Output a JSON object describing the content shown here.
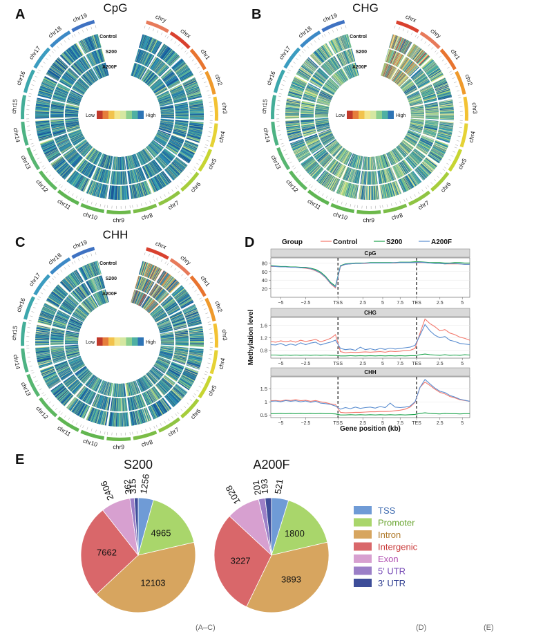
{
  "panel_letters": [
    "A",
    "B",
    "C",
    "D",
    "E"
  ],
  "colors": {
    "circos_palette": [
      "#1a5a9b",
      "#2f8fb4",
      "#43a9a6",
      "#6cbf8f",
      "#a3d07d",
      "#d4e48a",
      "#eaeab0",
      "#e6c56a",
      "#e49a4a",
      "#cf4a3c"
    ],
    "heat_scale": [
      "#c0392b",
      "#e67e3c",
      "#f2c24c",
      "#f3e58c",
      "#d5e7a1",
      "#8ccf8e",
      "#4fb0a3",
      "#2e74b5"
    ],
    "control": "#f3786c",
    "s200": "#1ba24b",
    "a200f": "#5b8ed0",
    "facet_strip": "#d9d9d9"
  },
  "circos": [
    {
      "title": "CpG",
      "tracks": [
        "Control",
        "S200",
        "A200F"
      ],
      "legend_low": "Low",
      "legend_high": "High",
      "style": "cpg"
    },
    {
      "title": "CHG",
      "tracks": [
        "Control",
        "S200",
        "A200F"
      ],
      "legend_low": "Low",
      "legend_high": "High",
      "style": "chg"
    },
    {
      "title": "CHH",
      "tracks": [
        "Control",
        "S200",
        "A200F"
      ],
      "legend_low": "Low",
      "legend_high": "High",
      "style": "chh"
    }
  ],
  "chromosomes": [
    {
      "name": "chr1",
      "color": "#e8742f"
    },
    {
      "name": "chr2",
      "color": "#ef9a2c"
    },
    {
      "name": "chr3",
      "color": "#f3c233"
    },
    {
      "name": "chr4",
      "color": "#e5d235"
    },
    {
      "name": "chr5",
      "color": "#c7d532"
    },
    {
      "name": "chr6",
      "color": "#a6cd3b"
    },
    {
      "name": "chr7",
      "color": "#8fc443"
    },
    {
      "name": "chr8",
      "color": "#7bbd47"
    },
    {
      "name": "chr9",
      "color": "#6cb84a"
    },
    {
      "name": "chr10",
      "color": "#62b64f"
    },
    {
      "name": "chr11",
      "color": "#5fb552"
    },
    {
      "name": "chr12",
      "color": "#5db75f"
    },
    {
      "name": "chr13",
      "color": "#57b671"
    },
    {
      "name": "chr14",
      "color": "#4db383"
    },
    {
      "name": "chr15",
      "color": "#44ae98"
    },
    {
      "name": "chr16",
      "color": "#3da7ad"
    },
    {
      "name": "chr17",
      "color": "#3b9cc0"
    },
    {
      "name": "chr18",
      "color": "#3c89c6"
    },
    {
      "name": "chr19",
      "color": "#3f72c2"
    },
    {
      "name": "chry",
      "color": "#e77a5a"
    },
    {
      "name": "chrx",
      "color": "#d9412f"
    }
  ],
  "circos_chrom_order": {
    "cpg": [
      "chry",
      "chrx",
      "chr1",
      "chr2",
      "chr3",
      "chr4",
      "chr5",
      "chr6",
      "chr7",
      "chr8",
      "chr9",
      "chr10",
      "chr11",
      "chr12",
      "chr13",
      "chr14",
      "chr15",
      "chr16",
      "chr17",
      "chr18",
      "chr19"
    ],
    "chg": [
      "chrx",
      "chry",
      "chr1",
      "chr2",
      "chr3",
      "chr4",
      "chr5",
      "chr6",
      "chr7",
      "chr8",
      "chr9",
      "chr10",
      "chr11",
      "chr12",
      "chr13",
      "chr14",
      "chr15",
      "chr16",
      "chr17",
      "chr18",
      "chr19"
    ],
    "chh": [
      "chrx",
      "chry",
      "chr1",
      "chr2",
      "chr3",
      "chr4",
      "chr5",
      "chr6",
      "chr7",
      "chr8",
      "chr9",
      "chr10",
      "chr11",
      "chr12",
      "chr13",
      "chr14",
      "chr15",
      "chr16",
      "chr17",
      "chr18",
      "chr19"
    ]
  },
  "chart_data": [
    {
      "type": "heatmap",
      "panel": "A",
      "title": "CpG",
      "tracks": [
        "Control",
        "S200",
        "A200F"
      ],
      "legend": [
        "Low",
        "High"
      ]
    },
    {
      "type": "heatmap",
      "panel": "B",
      "title": "CHG",
      "tracks": [
        "Control",
        "S200",
        "A200F"
      ],
      "legend": [
        "Low",
        "High"
      ]
    },
    {
      "type": "heatmap",
      "panel": "C",
      "title": "CHH",
      "tracks": [
        "Control",
        "S200",
        "A200F"
      ],
      "legend": [
        "Low",
        "High"
      ]
    },
    {
      "type": "line",
      "panel": "D",
      "legend_title": "Group",
      "ylabel": "Methylation level",
      "xlabel": "Gene position (kb)",
      "x_ticks": [
        "−5",
        "−2.5",
        "TSS",
        "2.5",
        "5",
        "7.5",
        "TES",
        "2.5",
        "5"
      ],
      "series_names": [
        "Control",
        "S200",
        "A200F"
      ],
      "facets": [
        {
          "name": "CpG",
          "ylim": [
            0,
            92
          ],
          "y_ticks": [
            20,
            40,
            60,
            80
          ],
          "series": [
            {
              "name": "Control",
              "values": [
                72,
                72,
                71,
                71,
                70,
                70,
                69,
                68,
                66,
                62,
                56,
                46,
                32,
                22,
                72,
                77,
                78,
                79,
                79,
                79,
                80,
                80,
                80,
                80,
                80,
                80,
                81,
                81,
                81,
                81,
                81,
                81,
                80,
                80,
                79,
                78,
                78,
                78,
                78,
                77,
                77
              ]
            },
            {
              "name": "S200",
              "values": [
                74,
                73,
                72,
                72,
                71,
                71,
                70,
                70,
                68,
                65,
                59,
                49,
                35,
                26,
                74,
                78,
                79,
                80,
                80,
                80,
                81,
                81,
                81,
                81,
                81,
                81,
                82,
                82,
                82,
                83,
                83,
                82,
                81,
                81,
                81,
                80,
                80,
                81,
                81,
                80,
                80
              ]
            },
            {
              "name": "A200F",
              "values": [
                73,
                72,
                71,
                71,
                70,
                70,
                69,
                69,
                67,
                63,
                57,
                47,
                33,
                24,
                73,
                77,
                78,
                79,
                79,
                80,
                80,
                80,
                80,
                80,
                80,
                81,
                81,
                81,
                81,
                81,
                82,
                81,
                80,
                79,
                79,
                78,
                79,
                79,
                78,
                77,
                77
              ]
            }
          ]
        },
        {
          "name": "CHG",
          "ylim": [
            0.55,
            1.85
          ],
          "y_ticks": [
            0.8,
            1.2,
            1.6
          ],
          "series": [
            {
              "name": "Control",
              "values": [
                1.08,
                1.06,
                1.1,
                1.07,
                1.1,
                1.06,
                1.12,
                1.08,
                1.11,
                1.15,
                1.07,
                1.12,
                1.18,
                1.3,
                0.76,
                0.72,
                0.74,
                0.73,
                0.74,
                0.75,
                0.74,
                0.75,
                0.76,
                0.74,
                0.77,
                0.76,
                0.77,
                0.79,
                0.8,
                0.86,
                1.35,
                1.8,
                1.65,
                1.55,
                1.42,
                1.46,
                1.35,
                1.3,
                1.22,
                1.18,
                1.12
              ]
            },
            {
              "name": "S200",
              "values": [
                0.65,
                0.65,
                0.64,
                0.65,
                0.64,
                0.65,
                0.64,
                0.65,
                0.64,
                0.65,
                0.64,
                0.65,
                0.64,
                0.64,
                0.62,
                0.62,
                0.63,
                0.62,
                0.63,
                0.62,
                0.63,
                0.62,
                0.63,
                0.62,
                0.63,
                0.62,
                0.63,
                0.62,
                0.63,
                0.63,
                0.66,
                0.68,
                0.66,
                0.65,
                0.64,
                0.66,
                0.64,
                0.65,
                0.64,
                0.66,
                0.65
              ]
            },
            {
              "name": "A200F",
              "values": [
                0.98,
                0.97,
                1.02,
                0.95,
                1.0,
                0.96,
                1.04,
                0.98,
                1.03,
                1.06,
                0.97,
                1.02,
                1.06,
                1.12,
                0.86,
                0.82,
                0.84,
                0.8,
                0.9,
                0.82,
                0.85,
                0.81,
                0.86,
                0.83,
                0.87,
                0.84,
                0.86,
                0.88,
                0.9,
                0.96,
                1.28,
                1.62,
                1.42,
                1.28,
                1.2,
                1.24,
                1.12,
                1.08,
                1.02,
                1.0,
                0.98
              ]
            }
          ]
        },
        {
          "name": "CHH",
          "ylim": [
            0.4,
            1.95
          ],
          "y_ticks": [
            0.5,
            1.0,
            1.5
          ],
          "series": [
            {
              "name": "Control",
              "values": [
                1.04,
                1.05,
                1.03,
                1.07,
                1.05,
                1.08,
                1.04,
                1.06,
                1.02,
                1.05,
                1.0,
                0.97,
                0.92,
                0.9,
                0.6,
                0.58,
                0.59,
                0.6,
                0.6,
                0.61,
                0.62,
                0.62,
                0.63,
                0.63,
                0.64,
                0.66,
                0.68,
                0.72,
                0.8,
                0.98,
                1.55,
                1.75,
                1.62,
                1.48,
                1.36,
                1.3,
                1.2,
                1.15,
                1.08,
                1.05,
                1.02
              ]
            },
            {
              "name": "S200",
              "values": [
                0.55,
                0.55,
                0.56,
                0.55,
                0.56,
                0.55,
                0.56,
                0.55,
                0.56,
                0.55,
                0.56,
                0.55,
                0.55,
                0.54,
                0.5,
                0.5,
                0.51,
                0.5,
                0.51,
                0.5,
                0.51,
                0.5,
                0.51,
                0.5,
                0.51,
                0.5,
                0.51,
                0.5,
                0.51,
                0.52,
                0.56,
                0.58,
                0.56,
                0.55,
                0.54,
                0.56,
                0.55,
                0.55,
                0.54,
                0.55,
                0.55
              ]
            },
            {
              "name": "A200F",
              "values": [
                1.02,
                1.03,
                1.0,
                1.05,
                1.02,
                1.04,
                1.0,
                1.03,
                0.98,
                1.02,
                0.95,
                0.93,
                0.9,
                0.84,
                0.72,
                0.78,
                0.74,
                0.8,
                0.75,
                0.78,
                0.8,
                0.76,
                0.82,
                0.78,
                0.95,
                0.8,
                0.78,
                0.8,
                0.84,
                1.0,
                1.55,
                1.85,
                1.68,
                1.52,
                1.4,
                1.35,
                1.24,
                1.18,
                1.1,
                1.06,
                1.02
              ]
            }
          ]
        }
      ]
    },
    {
      "type": "pie",
      "panel": "E",
      "title": "S200",
      "slices": [
        {
          "label": "TSS",
          "value": 1256
        },
        {
          "label": "Promoter",
          "value": 4965
        },
        {
          "label": "Intron",
          "value": 12103
        },
        {
          "label": "Intergenic",
          "value": 7662
        },
        {
          "label": "Exon",
          "value": 2406
        },
        {
          "label": "5' UTR",
          "value": 362
        },
        {
          "label": "3' UTR",
          "value": 315
        }
      ]
    },
    {
      "type": "pie",
      "panel": "E",
      "title": "A200F",
      "slices": [
        {
          "label": "TSS",
          "value": 521
        },
        {
          "label": "Promoter",
          "value": 1800
        },
        {
          "label": "Intron",
          "value": 3893
        },
        {
          "label": "Intergenic",
          "value": 3227
        },
        {
          "label": "Exon",
          "value": 1028
        },
        {
          "label": "5' UTR",
          "value": 201
        },
        {
          "label": "3' UTR",
          "value": 193
        }
      ]
    }
  ],
  "pie_legend": [
    {
      "label": "TSS",
      "color": "#6f9bd6",
      "text_color": "#3f6bb0"
    },
    {
      "label": "Promoter",
      "color": "#a9d66b",
      "text_color": "#6aa531"
    },
    {
      "label": "Intron",
      "color": "#d7a55f",
      "text_color": "#b07a2a"
    },
    {
      "label": "Intergenic",
      "color": "#d9676a",
      "text_color": "#c93a3a"
    },
    {
      "label": "Exon",
      "color": "#d7a0d0",
      "text_color": "#b04eb0"
    },
    {
      "label": "5' UTR",
      "color": "#9b7fc7",
      "text_color": "#7a4fb8"
    },
    {
      "label": "3' UTR",
      "color": "#3d4d99",
      "text_color": "#2c3b8f"
    }
  ],
  "caption_fragments": [
    "(A–C)",
    "(D)",
    "(E)"
  ]
}
